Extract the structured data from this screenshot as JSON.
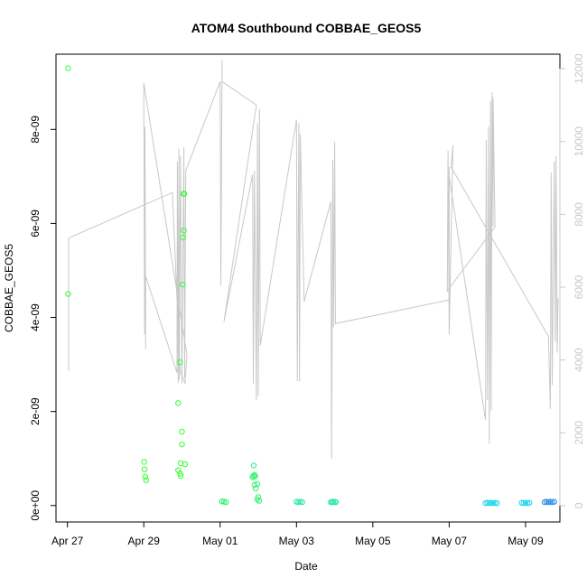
{
  "chart_data": {
    "type": "scatter",
    "title": "ATOM4 Southbound COBBAE_GEOS5",
    "xlabel": "Date",
    "ylabel": "COBBAE_GEOS5",
    "x_axis": {
      "range_days": [
        -0.3,
        12.9
      ],
      "ticks": [
        {
          "day": 0,
          "label": "Apr 27"
        },
        {
          "day": 2,
          "label": "Apr 29"
        },
        {
          "day": 4,
          "label": "May 01"
        },
        {
          "day": 6,
          "label": "May 03"
        },
        {
          "day": 8,
          "label": "May 05"
        },
        {
          "day": 10,
          "label": "May 07"
        },
        {
          "day": 12,
          "label": "May 09"
        }
      ]
    },
    "y_axis": {
      "range": [
        -3.5e-10,
        9.6e-09
      ],
      "ticks": [
        {
          "value": 0,
          "label": "0e+00"
        },
        {
          "value": 2e-09,
          "label": "2e-09"
        },
        {
          "value": 4e-09,
          "label": "4e-09"
        },
        {
          "value": 6e-09,
          "label": "6e-09"
        },
        {
          "value": 8e-09,
          "label": "8e-09"
        }
      ]
    },
    "y2_axis": {
      "quantity": "altitude (secondary axis, unlabeled)",
      "range": [
        -450,
        12400
      ],
      "ticks": [
        0,
        2000,
        4000,
        6000,
        8000,
        10000,
        12000
      ],
      "line_color": "#c8c8c8"
    },
    "line_series": {
      "name": "",
      "axis": "right",
      "color": "#c8c8c8",
      "points": [
        [
          0.03,
          3700
        ],
        [
          0.03,
          7350
        ],
        [
          2.75,
          8600
        ],
        [
          2.95,
          3700
        ],
        [
          3.08,
          3350
        ],
        [
          3.13,
          4150
        ],
        [
          2.0,
          11600
        ],
        [
          2.02,
          4700
        ],
        [
          2.03,
          10400
        ],
        [
          2.05,
          4300
        ],
        [
          2.05,
          6300
        ],
        [
          2.87,
          3650
        ],
        [
          2.88,
          9450
        ],
        [
          2.9,
          3380
        ],
        [
          2.92,
          9800
        ],
        [
          2.93,
          3450
        ],
        [
          2.96,
          9600
        ],
        [
          3.0,
          3350
        ],
        [
          3.05,
          9850
        ],
        [
          3.07,
          3500
        ],
        [
          3.1,
          9200
        ],
        [
          4.0,
          11650
        ],
        [
          4.02,
          6050
        ],
        [
          4.05,
          12250
        ],
        [
          4.05,
          11650
        ],
        [
          4.95,
          11000
        ],
        [
          4.1,
          5050
        ],
        [
          4.85,
          9100
        ],
        [
          4.87,
          3350
        ],
        [
          4.9,
          9200
        ],
        [
          4.95,
          2900
        ],
        [
          4.98,
          10500
        ],
        [
          5.0,
          3000
        ],
        [
          5.03,
          10900
        ],
        [
          5.05,
          4400
        ],
        [
          6.0,
          10600
        ],
        [
          6.02,
          3420
        ],
        [
          6.06,
          10500
        ],
        [
          6.08,
          3400
        ],
        [
          6.1,
          10200
        ],
        [
          6.2,
          5600
        ],
        [
          6.9,
          8350
        ],
        [
          6.92,
          1300
        ],
        [
          6.95,
          9500
        ],
        [
          6.97,
          4900
        ],
        [
          7.0,
          10000
        ],
        [
          7.02,
          5000
        ],
        [
          10.0,
          5650
        ],
        [
          10.0,
          9300
        ],
        [
          10.0,
          9050
        ],
        [
          10.95,
          2350
        ],
        [
          10.97,
          10050
        ],
        [
          11.0,
          2900
        ],
        [
          11.03,
          10400
        ],
        [
          11.05,
          1700
        ],
        [
          11.08,
          11100
        ],
        [
          11.1,
          2600
        ],
        [
          11.12,
          11350
        ],
        [
          11.15,
          7650
        ],
        [
          11.15,
          11200
        ],
        [
          11.2,
          7650
        ],
        [
          9.95,
          5900
        ],
        [
          9.97,
          9750
        ],
        [
          10.0,
          4700
        ],
        [
          10.1,
          9900
        ],
        [
          10.05,
          9300
        ],
        [
          12.6,
          4650
        ],
        [
          12.65,
          2650
        ],
        [
          12.67,
          9150
        ],
        [
          12.7,
          3300
        ],
        [
          12.75,
          9450
        ],
        [
          12.78,
          4500
        ],
        [
          12.8,
          9600
        ],
        [
          12.83,
          4200
        ],
        [
          12.85,
          5700
        ]
      ]
    },
    "scatter_series": [
      {
        "name": "",
        "color": "#33ff33",
        "points": [
          [
            0.02,
            9.3e-09
          ],
          [
            0.02,
            4.5e-09
          ],
          [
            2.01,
            9.3e-10
          ],
          [
            2.02,
            7.7e-10
          ],
          [
            2.04,
            6.1e-10
          ],
          [
            2.06,
            5.4e-10
          ],
          [
            2.9,
            2.18e-09
          ],
          [
            2.95,
            3.05e-09
          ],
          [
            2.9,
            7.5e-10
          ],
          [
            2.95,
            6.8e-10
          ],
          [
            2.97,
            6.3e-10
          ],
          [
            2.97,
            9e-10
          ],
          [
            3.0,
            1.3e-09
          ],
          [
            3.0,
            1.57e-09
          ],
          [
            3.02,
            4.7e-09
          ],
          [
            3.03,
            5.7e-09
          ],
          [
            3.05,
            5.85e-09
          ],
          [
            3.04,
            6.63e-09
          ],
          [
            3.06,
            6.63e-09
          ],
          [
            3.08,
            8.8e-10
          ]
        ]
      },
      {
        "name": "",
        "color": "#2cf26a",
        "points": [
          [
            4.05,
            9e-11
          ],
          [
            4.1,
            8e-11
          ],
          [
            4.15,
            7e-11
          ],
          [
            4.85,
            6e-10
          ],
          [
            4.87,
            6.3e-10
          ],
          [
            4.9,
            6.5e-10
          ],
          [
            4.92,
            6.2e-10
          ],
          [
            4.88,
            8.5e-10
          ],
          [
            4.9,
            4.4e-10
          ],
          [
            4.97,
            4.6e-10
          ],
          [
            4.93,
            3.6e-10
          ],
          [
            4.97,
            1.3e-10
          ],
          [
            5.0,
            1.8e-10
          ],
          [
            5.02,
            1e-10
          ]
        ]
      },
      {
        "name": "",
        "color": "#26e8a6",
        "points": [
          [
            6.0,
            8e-11
          ],
          [
            6.05,
            7e-11
          ],
          [
            6.1,
            8e-11
          ],
          [
            6.15,
            7e-11
          ],
          [
            6.9,
            7e-11
          ],
          [
            6.93,
            8e-11
          ],
          [
            6.96,
            7e-11
          ],
          [
            7.0,
            8e-11
          ],
          [
            7.03,
            7e-11
          ]
        ]
      },
      {
        "name": "",
        "color": "#1fd6ea",
        "points": [
          [
            10.95,
            5e-11
          ],
          [
            11.0,
            6e-11
          ],
          [
            11.05,
            5e-11
          ],
          [
            11.1,
            6e-11
          ],
          [
            11.15,
            5e-11
          ],
          [
            11.2,
            6e-11
          ],
          [
            11.25,
            5e-11
          ],
          [
            11.9,
            6e-11
          ],
          [
            11.95,
            5e-11
          ],
          [
            12.0,
            6e-11
          ],
          [
            12.05,
            5e-11
          ],
          [
            12.1,
            6e-11
          ]
        ]
      },
      {
        "name": "",
        "color": "#2a8ee6",
        "points": [
          [
            12.5,
            7e-11
          ],
          [
            12.55,
            8e-11
          ],
          [
            12.6,
            7e-11
          ],
          [
            12.65,
            8e-11
          ],
          [
            12.7,
            7e-11
          ],
          [
            12.75,
            8e-11
          ]
        ]
      }
    ],
    "grid": false,
    "legend": "none"
  }
}
